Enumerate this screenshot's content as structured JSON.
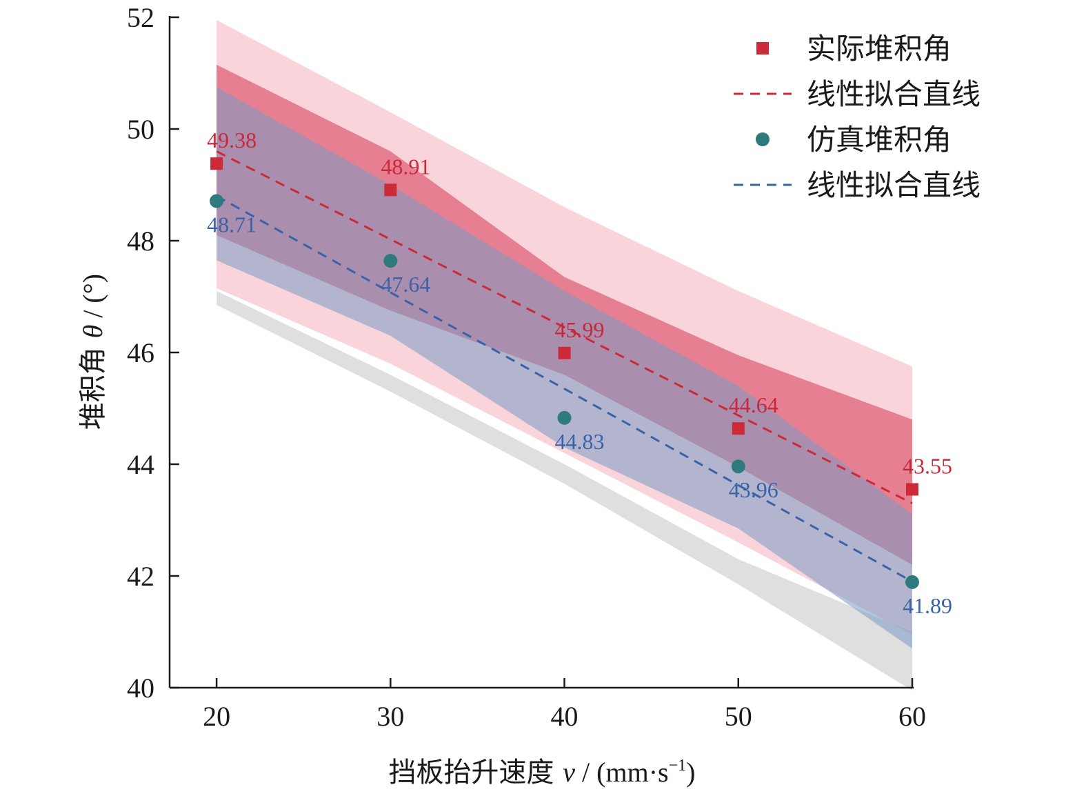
{
  "chart_data": {
    "type": "scatter",
    "title": "",
    "xlabel": "挡板抬升速度 v / (mm·s⁻¹)",
    "xlabel_parts": {
      "prefix": "挡板抬升速度 ",
      "var": "v",
      "mid": " / (mm·s",
      "sup": "−1",
      "suffix": ")"
    },
    "ylabel": "堆积角 θ / (°)",
    "ylabel_parts": {
      "prefix": "堆积角 ",
      "var": "θ",
      "suffix": " / (°)"
    },
    "xlim": [
      17.3,
      60
    ],
    "ylim": [
      40,
      52
    ],
    "xticks": [
      20,
      30,
      40,
      50,
      60
    ],
    "yticks": [
      40,
      42,
      44,
      46,
      48,
      50,
      52
    ],
    "legend_position": "top-right",
    "grid": false,
    "series": [
      {
        "name": "实际堆积角",
        "marker": "square",
        "color": "#cc2a36",
        "x": [
          20,
          30,
          40,
          50,
          60
        ],
        "y": [
          49.38,
          48.91,
          45.99,
          44.64,
          43.55
        ],
        "labels": [
          "49.38",
          "48.91",
          "45.99",
          "44.64",
          "43.55"
        ]
      },
      {
        "name": "仿真堆积角",
        "marker": "circle",
        "color": "#2f7a7e",
        "x": [
          20,
          30,
          40,
          50,
          60
        ],
        "y": [
          48.71,
          47.64,
          44.83,
          43.96,
          41.89
        ],
        "labels": [
          "48.71",
          "47.64",
          "44.83",
          "43.96",
          "41.89"
        ]
      }
    ],
    "fit_lines": [
      {
        "name": "线性拟合直线",
        "color": "#cc2a36",
        "dash": true,
        "x": [
          20,
          60
        ],
        "y": [
          49.6,
          43.3
        ]
      },
      {
        "name": "线性拟合直线",
        "color": "#3a62a8",
        "dash": true,
        "x": [
          20,
          60
        ],
        "y": [
          48.8,
          41.9
        ]
      }
    ],
    "bands": [
      {
        "color": "#f5b8c2",
        "opacity": 0.6,
        "x": [
          20,
          30,
          40,
          50,
          60
        ],
        "upper": [
          51.95,
          50.3,
          48.6,
          47.1,
          45.75
        ],
        "lower": [
          47.15,
          45.8,
          44.2,
          42.6,
          40.95
        ]
      },
      {
        "color": "#b9b9b9",
        "opacity": 0.45,
        "x": [
          20,
          30,
          40,
          50,
          60
        ],
        "upper": [
          47.1,
          45.6,
          44.0,
          42.3,
          41.0
        ],
        "lower": [
          46.85,
          45.3,
          43.65,
          41.85,
          39.95
        ]
      },
      {
        "color": "#d94a64",
        "opacity": 0.62,
        "x": [
          20,
          30,
          40,
          50,
          60
        ],
        "upper": [
          51.15,
          49.6,
          47.35,
          45.95,
          44.8
        ],
        "lower": [
          48.1,
          46.75,
          45.6,
          43.95,
          42.2
        ]
      },
      {
        "color": "#7a9bc4",
        "opacity": 0.55,
        "x": [
          20,
          30,
          40,
          50,
          60
        ],
        "upper": [
          50.75,
          49.0,
          47.1,
          45.4,
          43.1
        ],
        "lower": [
          47.65,
          46.3,
          44.3,
          42.85,
          40.7
        ]
      }
    ]
  }
}
